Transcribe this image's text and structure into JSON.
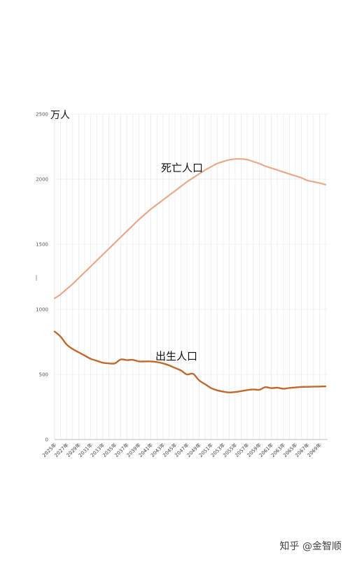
{
  "watermark": "知乎 @金智顺",
  "chart_data": {
    "type": "line",
    "title": "",
    "ylabel": "万人",
    "xlabel": "",
    "ylim": [
      0,
      2500
    ],
    "yticks": [
      0,
      500,
      1000,
      1500,
      2000,
      2500
    ],
    "grid": true,
    "x": [
      "2025年",
      "2026年",
      "2027年",
      "2028年",
      "2029年",
      "2030年",
      "2031年",
      "2032年",
      "2033年",
      "2034年",
      "2035年",
      "2036年",
      "2037年",
      "2038年",
      "2039年",
      "2040年",
      "2041年",
      "2042年",
      "2043年",
      "2044年",
      "2045年",
      "2046年",
      "2047年",
      "2048年",
      "2049年",
      "2050年",
      "2051年",
      "2052年",
      "2053年",
      "2054年",
      "2055年",
      "2056年",
      "2057年",
      "2058年",
      "2059年",
      "2060年",
      "2061年",
      "2062年",
      "2063年",
      "2064年",
      "2065年",
      "2066年",
      "2067年",
      "2068年",
      "2069年",
      "2070年"
    ],
    "x_tick_labels": [
      "2025年",
      "2027年",
      "2029年",
      "2031年",
      "2033年",
      "2035年",
      "2037年",
      "2039年",
      "2041年",
      "2043年",
      "2045年",
      "2047年",
      "2049年",
      "2051年",
      "2053年",
      "2055年",
      "2057年",
      "2059年",
      "2061年",
      "2063年",
      "2065年",
      "2067年",
      "2069年"
    ],
    "series": [
      {
        "name": "死亡人口",
        "color": "#E8A98A",
        "values": [
          1085,
          1115,
          1155,
          1195,
          1240,
          1285,
          1330,
          1375,
          1420,
          1465,
          1510,
          1555,
          1600,
          1645,
          1690,
          1730,
          1770,
          1805,
          1840,
          1875,
          1910,
          1945,
          1980,
          2010,
          2040,
          2070,
          2095,
          2120,
          2135,
          2148,
          2155,
          2155,
          2150,
          2135,
          2120,
          2100,
          2085,
          2070,
          2055,
          2040,
          2025,
          2010,
          1990,
          1980,
          1970,
          1958
        ]
      },
      {
        "name": "出生人口",
        "color": "#C0692E",
        "values": [
          830,
          790,
          730,
          695,
          670,
          645,
          620,
          605,
          590,
          585,
          585,
          615,
          610,
          612,
          600,
          600,
          600,
          595,
          585,
          570,
          550,
          530,
          500,
          505,
          455,
          425,
          395,
          378,
          368,
          362,
          365,
          372,
          380,
          385,
          382,
          402,
          395,
          398,
          390,
          396,
          400,
          404,
          405,
          406,
          407,
          408
        ]
      }
    ]
  }
}
